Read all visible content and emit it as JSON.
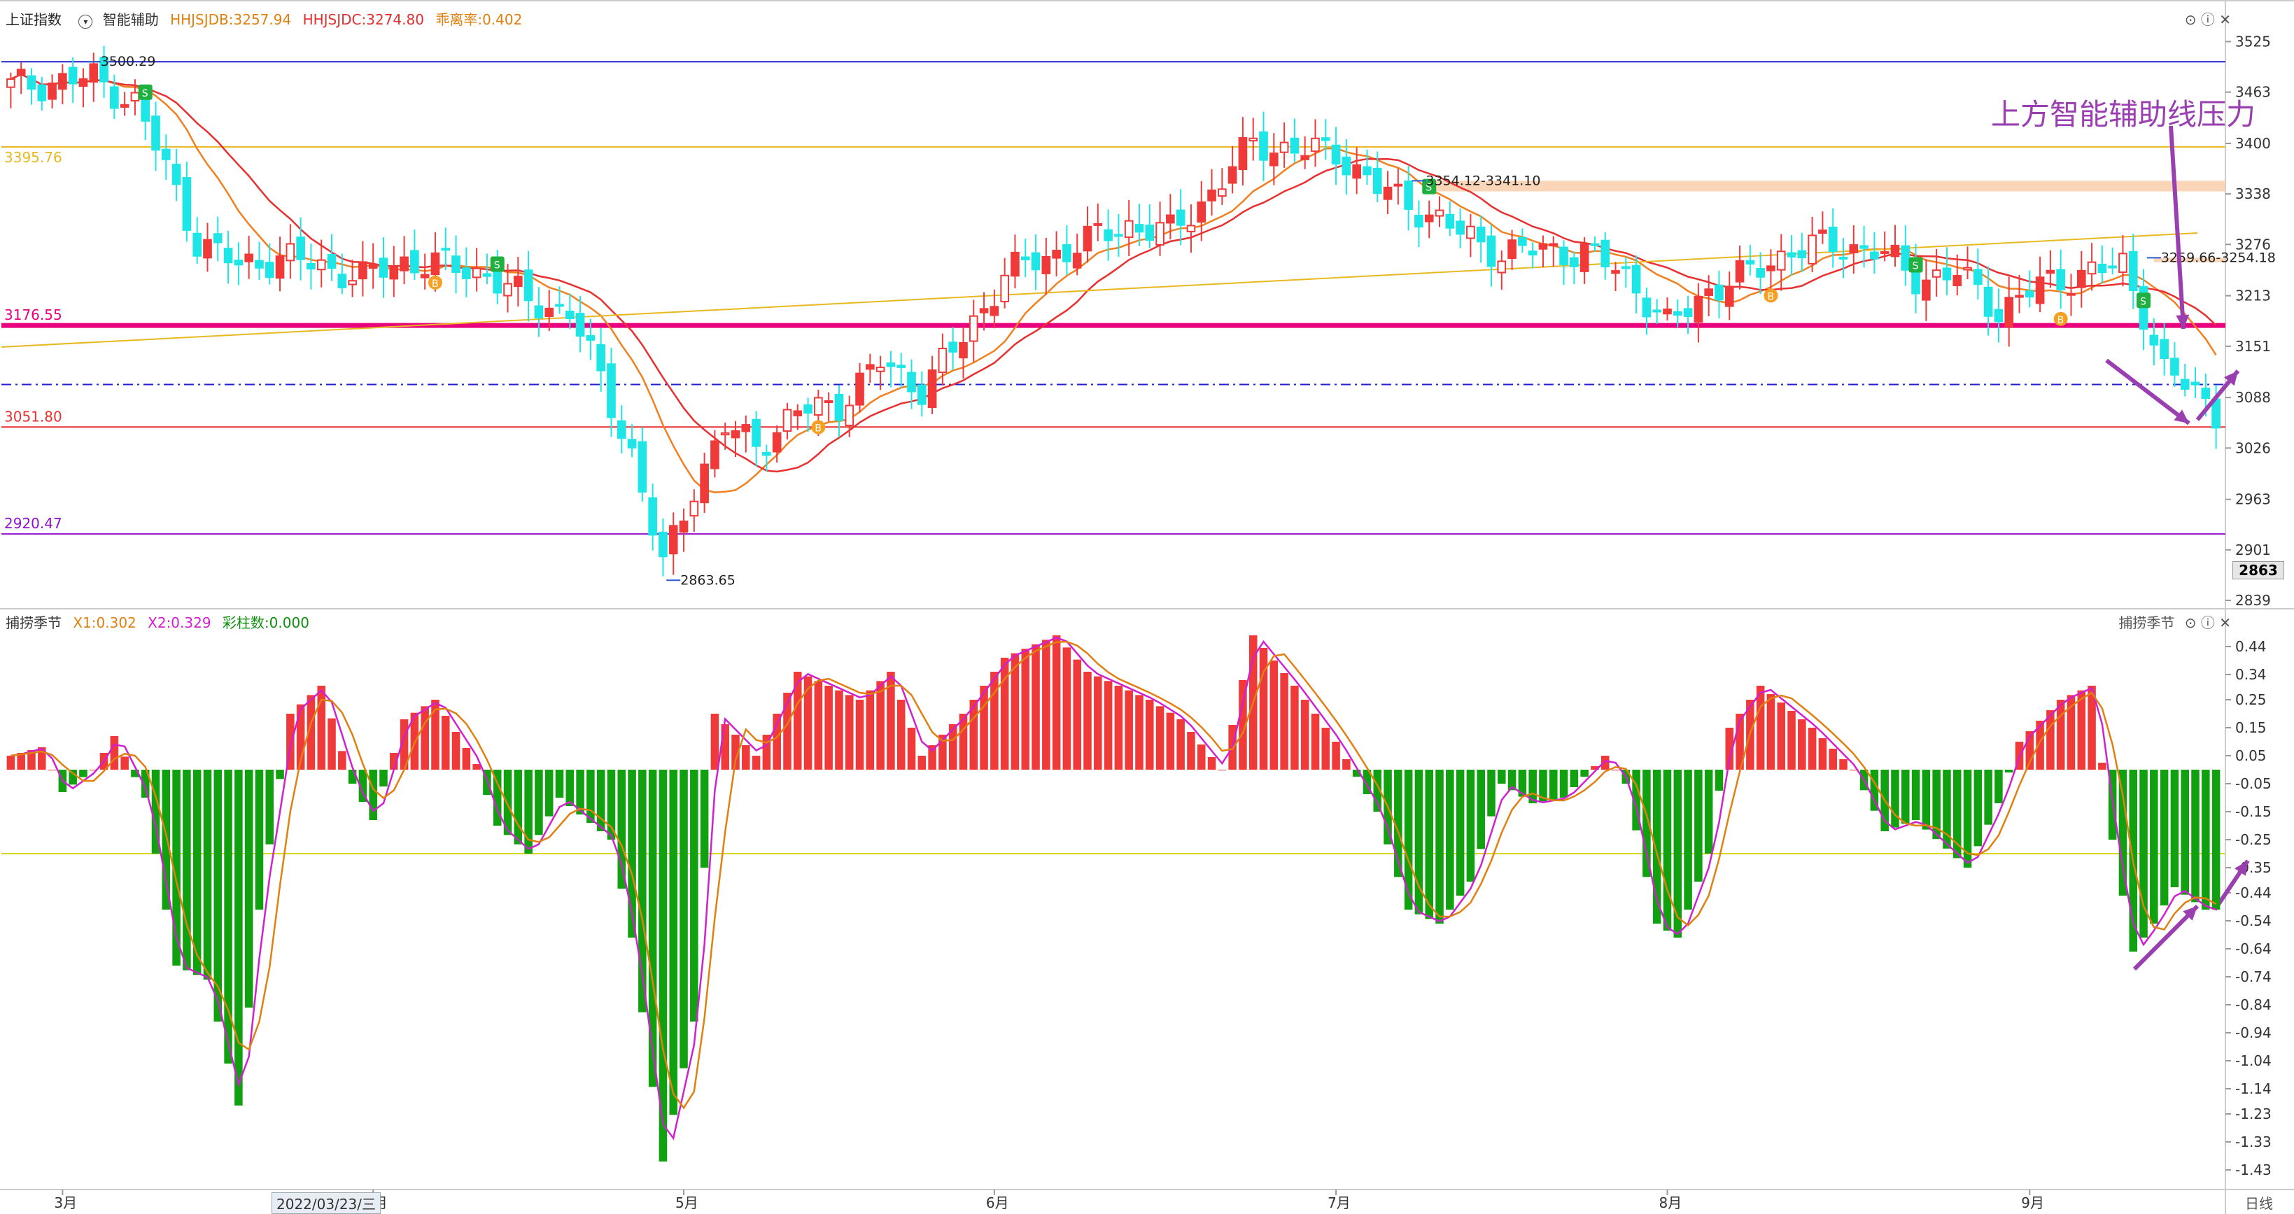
{
  "header": {
    "index_name": "上证指数",
    "indicator_name": "智能辅助",
    "hhjsjdb": "HHJSJDB:3257.94",
    "hhjsjdc": "HHJSJDC:3274.80",
    "deviation": "乖离率:0.402"
  },
  "sub_header": {
    "indicator_name": "捕捞季节",
    "x1": "X1:0.302",
    "x2": "X2:0.329",
    "bars": "彩柱数:0.000",
    "right_label": "捕捞季节"
  },
  "colors": {
    "up": "#f03a3a",
    "down": "#1ee6e6",
    "ma_red": "#e83030",
    "ma_orange": "#f08020",
    "trend": "#e8b820",
    "pink_line": "#e8007c",
    "blue_line": "#2020d0",
    "purple_line": "#9010d0",
    "osc_up": "#f03a3a",
    "osc_down": "#10a010",
    "arrow": "#9a3fb0"
  },
  "chart_data": [
    {
      "type": "candlestick",
      "ylim": [
        2839,
        3540
      ],
      "y_ticks": [
        "3525",
        "3463",
        "3400",
        "3338",
        "3276",
        "3213",
        "3151",
        "3088",
        "3026",
        "2963",
        "2901",
        "2839"
      ],
      "current_price_tag": "2863",
      "x_ticks": [
        "3月",
        "4月",
        "5月",
        "6月",
        "7月",
        "8月",
        "9月"
      ],
      "x_tick_positions": [
        5,
        35,
        65,
        95,
        128,
        160,
        195
      ],
      "date_marker": "2022/03/23/三",
      "date_marker_index": 25,
      "period_label": "日线",
      "levels": [
        {
          "label": "3500.29",
          "value": 3500.29,
          "color": "blue_line"
        },
        {
          "label": "3395.76",
          "value": 3395.76,
          "color": "trend"
        },
        {
          "label": "3176.55",
          "value": 3176.55,
          "color": "pink_line"
        },
        {
          "label": "3051.80",
          "value": 3051.8,
          "color": "ma_red"
        },
        {
          "label": "2920.47",
          "value": 2920.47,
          "color": "purple_line"
        }
      ],
      "dash_level": 3104,
      "annotations": [
        {
          "label": "3500.29",
          "index": 8,
          "value": 3500.29
        },
        {
          "label": "2863.65",
          "index": 64,
          "value": 2863.65
        },
        {
          "label": "3354.12-3341.10",
          "index": 136,
          "value": 3354.12
        },
        {
          "label": "3259.66-3254.18",
          "index": 207,
          "value": 3259.66
        }
      ],
      "callout": "上方智能辅助线压力",
      "resistance_band": [
        3341.1,
        3354.12
      ],
      "resistance_band_2": [
        3254.18,
        3259.66
      ],
      "buy_signals": [
        41,
        78,
        170,
        198
      ],
      "sell_signals": [
        13,
        47,
        137,
        184,
        206
      ]
    },
    {
      "type": "bar",
      "ylim": [
        -1.5,
        0.5
      ],
      "y_ticks": [
        "0.44",
        "0.34",
        "0.25",
        "0.15",
        "0.05",
        "-0.05",
        "-0.15",
        "-0.25",
        "-0.35",
        "-0.44",
        "-0.54",
        "-0.64",
        "-0.74",
        "-0.84",
        "-0.94",
        "-1.04",
        "-1.14",
        "-1.23",
        "-1.33",
        "-1.43"
      ],
      "ref_level": -0.3,
      "anchors": [
        [
          0,
          0.05
        ],
        [
          3,
          0.08
        ],
        [
          5,
          -0.08
        ],
        [
          8,
          0.0
        ],
        [
          10,
          0.12
        ],
        [
          13,
          -0.1
        ],
        [
          16,
          -0.7
        ],
        [
          19,
          -0.75
        ],
        [
          22,
          -1.2
        ],
        [
          24,
          -0.5
        ],
        [
          27,
          0.2
        ],
        [
          30,
          0.3
        ],
        [
          33,
          -0.05
        ],
        [
          35,
          -0.18
        ],
        [
          38,
          0.18
        ],
        [
          41,
          0.25
        ],
        [
          45,
          0.02
        ],
        [
          47,
          -0.2
        ],
        [
          50,
          -0.3
        ],
        [
          53,
          -0.1
        ],
        [
          58,
          -0.25
        ],
        [
          60,
          -0.6
        ],
        [
          63,
          -1.4
        ],
        [
          66,
          -0.9
        ],
        [
          68,
          0.2
        ],
        [
          72,
          0.05
        ],
        [
          76,
          0.35
        ],
        [
          82,
          0.25
        ],
        [
          85,
          0.35
        ],
        [
          88,
          0.05
        ],
        [
          92,
          0.2
        ],
        [
          96,
          0.4
        ],
        [
          101,
          0.48
        ],
        [
          104,
          0.35
        ],
        [
          110,
          0.25
        ],
        [
          113,
          0.18
        ],
        [
          117,
          0.0
        ],
        [
          120,
          0.48
        ],
        [
          124,
          0.3
        ],
        [
          128,
          0.1
        ],
        [
          132,
          -0.15
        ],
        [
          135,
          -0.5
        ],
        [
          138,
          -0.55
        ],
        [
          141,
          -0.4
        ],
        [
          144,
          -0.05
        ],
        [
          147,
          -0.12
        ],
        [
          150,
          -0.1
        ],
        [
          154,
          0.05
        ],
        [
          156,
          -0.05
        ],
        [
          159,
          -0.55
        ],
        [
          161,
          -0.6
        ],
        [
          164,
          -0.3
        ],
        [
          166,
          0.15
        ],
        [
          169,
          0.3
        ],
        [
          174,
          0.15
        ],
        [
          178,
          0.0
        ],
        [
          181,
          -0.22
        ],
        [
          184,
          -0.18
        ],
        [
          189,
          -0.35
        ],
        [
          192,
          -0.12
        ],
        [
          194,
          0.1
        ],
        [
          198,
          0.25
        ],
        [
          201,
          0.3
        ],
        [
          203,
          -0.25
        ],
        [
          205,
          -0.65
        ],
        [
          207,
          -0.55
        ],
        [
          209,
          -0.42
        ],
        [
          212,
          -0.5
        ]
      ]
    }
  ]
}
